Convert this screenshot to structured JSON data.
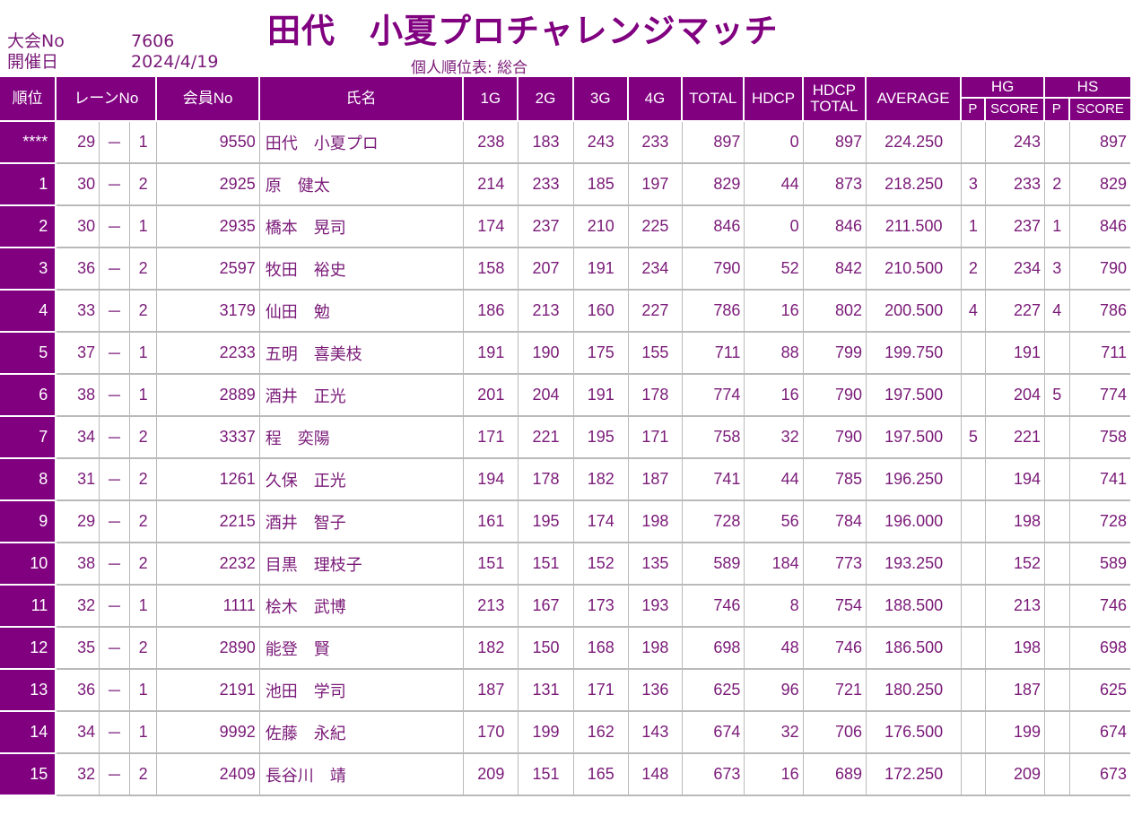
{
  "header": {
    "title": "田代　小夏プロチャレンジマッチ",
    "tournament_no_label": "大会No",
    "tournament_no": "7606",
    "date_label": "開催日",
    "date": "2024/4/19",
    "subtitle": "個人順位表: 総合"
  },
  "table": {
    "columns": {
      "rank": "順位",
      "lane": "レーンNo",
      "member_no": "会員No",
      "name": "氏名",
      "g1": "1G",
      "g2": "2G",
      "g3": "3G",
      "g4": "4G",
      "total": "TOTAL",
      "hdcp": "HDCP",
      "hdcp_total_1": "HDCP",
      "hdcp_total_2": "TOTAL",
      "average": "AVERAGE",
      "hg": "HG",
      "hs": "HS",
      "p": "P",
      "score": "SCORE"
    },
    "rows": [
      {
        "rank": "****",
        "lane": "29",
        "sep": "－",
        "pos": "1",
        "member": "9550",
        "name": "田代　小夏プロ",
        "g1": "238",
        "g2": "183",
        "g3": "243",
        "g4": "233",
        "total": "897",
        "hdcp": "0",
        "hdcp_total": "897",
        "avg": "224.250",
        "hg_p": "",
        "hg_score": "243",
        "hs_p": "",
        "hs_score": "897"
      },
      {
        "rank": "1",
        "lane": "30",
        "sep": "－",
        "pos": "2",
        "member": "2925",
        "name": "原　健太",
        "g1": "214",
        "g2": "233",
        "g3": "185",
        "g4": "197",
        "total": "829",
        "hdcp": "44",
        "hdcp_total": "873",
        "avg": "218.250",
        "hg_p": "3",
        "hg_score": "233",
        "hs_p": "2",
        "hs_score": "829"
      },
      {
        "rank": "2",
        "lane": "30",
        "sep": "－",
        "pos": "1",
        "member": "2935",
        "name": "橋本　晃司",
        "g1": "174",
        "g2": "237",
        "g3": "210",
        "g4": "225",
        "total": "846",
        "hdcp": "0",
        "hdcp_total": "846",
        "avg": "211.500",
        "hg_p": "1",
        "hg_score": "237",
        "hs_p": "1",
        "hs_score": "846"
      },
      {
        "rank": "3",
        "lane": "36",
        "sep": "－",
        "pos": "2",
        "member": "2597",
        "name": "牧田　裕史",
        "g1": "158",
        "g2": "207",
        "g3": "191",
        "g4": "234",
        "total": "790",
        "hdcp": "52",
        "hdcp_total": "842",
        "avg": "210.500",
        "hg_p": "2",
        "hg_score": "234",
        "hs_p": "3",
        "hs_score": "790"
      },
      {
        "rank": "4",
        "lane": "33",
        "sep": "－",
        "pos": "2",
        "member": "3179",
        "name": "仙田　勉",
        "g1": "186",
        "g2": "213",
        "g3": "160",
        "g4": "227",
        "total": "786",
        "hdcp": "16",
        "hdcp_total": "802",
        "avg": "200.500",
        "hg_p": "4",
        "hg_score": "227",
        "hs_p": "4",
        "hs_score": "786"
      },
      {
        "rank": "5",
        "lane": "37",
        "sep": "－",
        "pos": "1",
        "member": "2233",
        "name": "五明　喜美枝",
        "g1": "191",
        "g2": "190",
        "g3": "175",
        "g4": "155",
        "total": "711",
        "hdcp": "88",
        "hdcp_total": "799",
        "avg": "199.750",
        "hg_p": "",
        "hg_score": "191",
        "hs_p": "",
        "hs_score": "711"
      },
      {
        "rank": "6",
        "lane": "38",
        "sep": "－",
        "pos": "1",
        "member": "2889",
        "name": "酒井　正光",
        "g1": "201",
        "g2": "204",
        "g3": "191",
        "g4": "178",
        "total": "774",
        "hdcp": "16",
        "hdcp_total": "790",
        "avg": "197.500",
        "hg_p": "",
        "hg_score": "204",
        "hs_p": "5",
        "hs_score": "774"
      },
      {
        "rank": "7",
        "lane": "34",
        "sep": "－",
        "pos": "2",
        "member": "3337",
        "name": "程　奕陽",
        "g1": "171",
        "g2": "221",
        "g3": "195",
        "g4": "171",
        "total": "758",
        "hdcp": "32",
        "hdcp_total": "790",
        "avg": "197.500",
        "hg_p": "5",
        "hg_score": "221",
        "hs_p": "",
        "hs_score": "758"
      },
      {
        "rank": "8",
        "lane": "31",
        "sep": "－",
        "pos": "2",
        "member": "1261",
        "name": "久保　正光",
        "g1": "194",
        "g2": "178",
        "g3": "182",
        "g4": "187",
        "total": "741",
        "hdcp": "44",
        "hdcp_total": "785",
        "avg": "196.250",
        "hg_p": "",
        "hg_score": "194",
        "hs_p": "",
        "hs_score": "741"
      },
      {
        "rank": "9",
        "lane": "29",
        "sep": "－",
        "pos": "2",
        "member": "2215",
        "name": "酒井　智子",
        "g1": "161",
        "g2": "195",
        "g3": "174",
        "g4": "198",
        "total": "728",
        "hdcp": "56",
        "hdcp_total": "784",
        "avg": "196.000",
        "hg_p": "",
        "hg_score": "198",
        "hs_p": "",
        "hs_score": "728"
      },
      {
        "rank": "10",
        "lane": "38",
        "sep": "－",
        "pos": "2",
        "member": "2232",
        "name": "目黒　理枝子",
        "g1": "151",
        "g2": "151",
        "g3": "152",
        "g4": "135",
        "total": "589",
        "hdcp": "184",
        "hdcp_total": "773",
        "avg": "193.250",
        "hg_p": "",
        "hg_score": "152",
        "hs_p": "",
        "hs_score": "589"
      },
      {
        "rank": "11",
        "lane": "32",
        "sep": "－",
        "pos": "1",
        "member": "1111",
        "name": "桧木　武博",
        "g1": "213",
        "g2": "167",
        "g3": "173",
        "g4": "193",
        "total": "746",
        "hdcp": "8",
        "hdcp_total": "754",
        "avg": "188.500",
        "hg_p": "",
        "hg_score": "213",
        "hs_p": "",
        "hs_score": "746"
      },
      {
        "rank": "12",
        "lane": "35",
        "sep": "－",
        "pos": "2",
        "member": "2890",
        "name": "能登　賢",
        "g1": "182",
        "g2": "150",
        "g3": "168",
        "g4": "198",
        "total": "698",
        "hdcp": "48",
        "hdcp_total": "746",
        "avg": "186.500",
        "hg_p": "",
        "hg_score": "198",
        "hs_p": "",
        "hs_score": "698"
      },
      {
        "rank": "13",
        "lane": "36",
        "sep": "－",
        "pos": "1",
        "member": "2191",
        "name": "池田　学司",
        "g1": "187",
        "g2": "131",
        "g3": "171",
        "g4": "136",
        "total": "625",
        "hdcp": "96",
        "hdcp_total": "721",
        "avg": "180.250",
        "hg_p": "",
        "hg_score": "187",
        "hs_p": "",
        "hs_score": "625"
      },
      {
        "rank": "14",
        "lane": "34",
        "sep": "－",
        "pos": "1",
        "member": "9992",
        "name": "佐藤　永紀",
        "g1": "170",
        "g2": "199",
        "g3": "162",
        "g4": "143",
        "total": "674",
        "hdcp": "32",
        "hdcp_total": "706",
        "avg": "176.500",
        "hg_p": "",
        "hg_score": "199",
        "hs_p": "",
        "hs_score": "674"
      },
      {
        "rank": "15",
        "lane": "32",
        "sep": "－",
        "pos": "2",
        "member": "2409",
        "name": "長谷川　靖",
        "g1": "209",
        "g2": "151",
        "g3": "165",
        "g4": "148",
        "total": "673",
        "hdcp": "16",
        "hdcp_total": "689",
        "avg": "172.250",
        "hg_p": "",
        "hg_score": "209",
        "hs_p": "",
        "hs_score": "673"
      }
    ]
  }
}
